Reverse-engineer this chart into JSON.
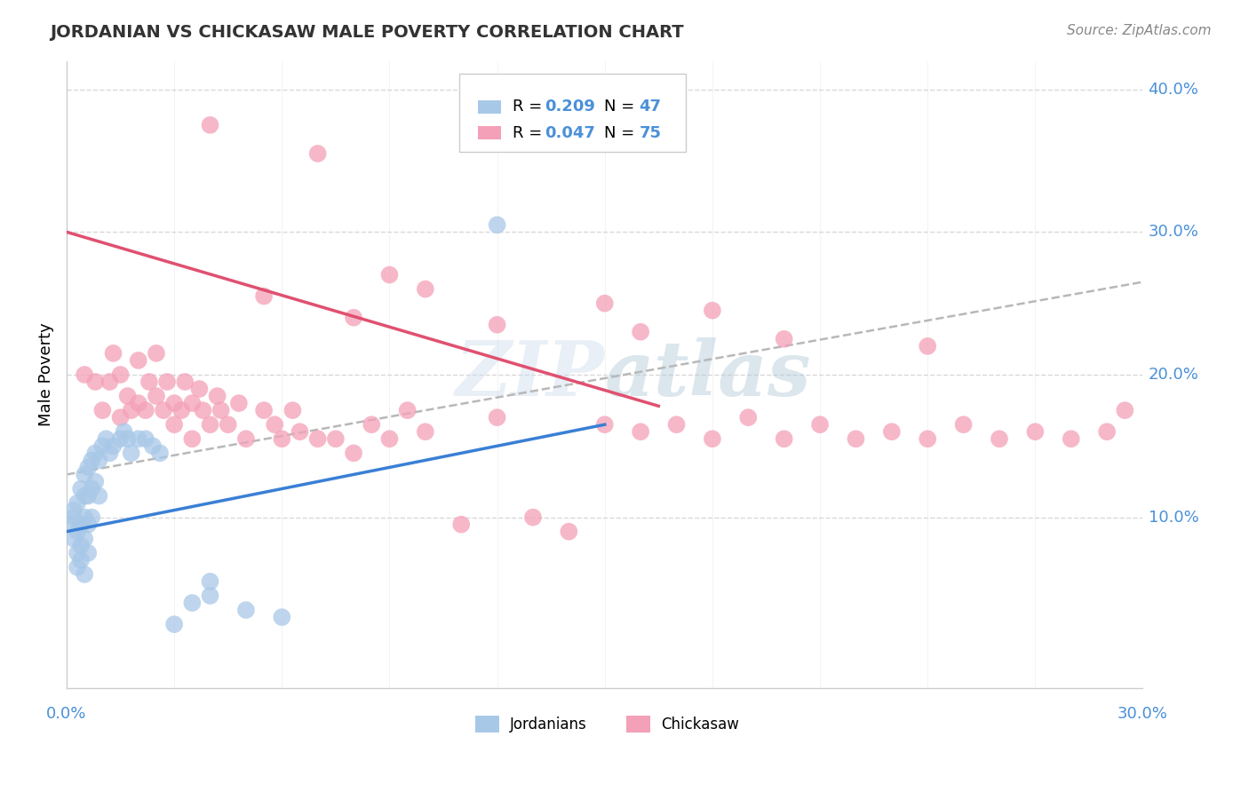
{
  "title": "JORDANIAN VS CHICKASAW MALE POVERTY CORRELATION CHART",
  "source": "Source: ZipAtlas.com",
  "ylabel": "Male Poverty",
  "xlim": [
    0.0,
    0.3
  ],
  "ylim": [
    -0.02,
    0.42
  ],
  "watermark": "ZIPatlas",
  "color_jordanian": "#a8c8e8",
  "color_chickasaw": "#f4a0b8",
  "trendline_jordanian": "#3a7fd5",
  "trendline_chickasaw": "#e05070",
  "trendline_dashed": "#b8b8b8",
  "background_color": "#ffffff",
  "grid_color": "#d8d8d8",
  "label_color": "#4a90d9",
  "jordanian_x": [
    0.001,
    0.002,
    0.002,
    0.002,
    0.003,
    0.003,
    0.003,
    0.003,
    0.004,
    0.004,
    0.004,
    0.004,
    0.005,
    0.005,
    0.005,
    0.005,
    0.005,
    0.006,
    0.006,
    0.006,
    0.006,
    0.007,
    0.007,
    0.007,
    0.008,
    0.008,
    0.009,
    0.009,
    0.01,
    0.011,
    0.012,
    0.013,
    0.015,
    0.016,
    0.017,
    0.018,
    0.02,
    0.022,
    0.024,
    0.026,
    0.03,
    0.035,
    0.04,
    0.05,
    0.06,
    0.12,
    0.04
  ],
  "jordanian_y": [
    0.095,
    0.105,
    0.085,
    0.1,
    0.11,
    0.09,
    0.075,
    0.065,
    0.12,
    0.095,
    0.08,
    0.07,
    0.13,
    0.115,
    0.1,
    0.085,
    0.06,
    0.135,
    0.115,
    0.095,
    0.075,
    0.14,
    0.12,
    0.1,
    0.145,
    0.125,
    0.14,
    0.115,
    0.15,
    0.155,
    0.145,
    0.15,
    0.155,
    0.16,
    0.155,
    0.145,
    0.155,
    0.155,
    0.15,
    0.145,
    0.025,
    0.04,
    0.055,
    0.035,
    0.03,
    0.305,
    0.045
  ],
  "chickasaw_x": [
    0.005,
    0.008,
    0.01,
    0.012,
    0.013,
    0.015,
    0.015,
    0.017,
    0.018,
    0.02,
    0.02,
    0.022,
    0.023,
    0.025,
    0.025,
    0.027,
    0.028,
    0.03,
    0.03,
    0.032,
    0.033,
    0.035,
    0.035,
    0.037,
    0.038,
    0.04,
    0.042,
    0.043,
    0.045,
    0.048,
    0.05,
    0.055,
    0.058,
    0.06,
    0.063,
    0.065,
    0.07,
    0.075,
    0.08,
    0.085,
    0.09,
    0.095,
    0.1,
    0.11,
    0.12,
    0.13,
    0.14,
    0.15,
    0.16,
    0.17,
    0.18,
    0.19,
    0.2,
    0.21,
    0.22,
    0.23,
    0.24,
    0.25,
    0.26,
    0.27,
    0.28,
    0.29,
    0.295,
    0.09,
    0.1,
    0.15,
    0.18,
    0.07,
    0.04,
    0.055,
    0.08,
    0.12,
    0.16,
    0.2,
    0.24
  ],
  "chickasaw_y": [
    0.2,
    0.195,
    0.175,
    0.195,
    0.215,
    0.2,
    0.17,
    0.185,
    0.175,
    0.21,
    0.18,
    0.175,
    0.195,
    0.215,
    0.185,
    0.175,
    0.195,
    0.18,
    0.165,
    0.175,
    0.195,
    0.18,
    0.155,
    0.19,
    0.175,
    0.165,
    0.185,
    0.175,
    0.165,
    0.18,
    0.155,
    0.175,
    0.165,
    0.155,
    0.175,
    0.16,
    0.155,
    0.155,
    0.145,
    0.165,
    0.155,
    0.175,
    0.16,
    0.095,
    0.17,
    0.1,
    0.09,
    0.165,
    0.16,
    0.165,
    0.155,
    0.17,
    0.155,
    0.165,
    0.155,
    0.16,
    0.155,
    0.165,
    0.155,
    0.16,
    0.155,
    0.16,
    0.175,
    0.27,
    0.26,
    0.25,
    0.245,
    0.355,
    0.375,
    0.255,
    0.24,
    0.235,
    0.23,
    0.225,
    0.22
  ]
}
